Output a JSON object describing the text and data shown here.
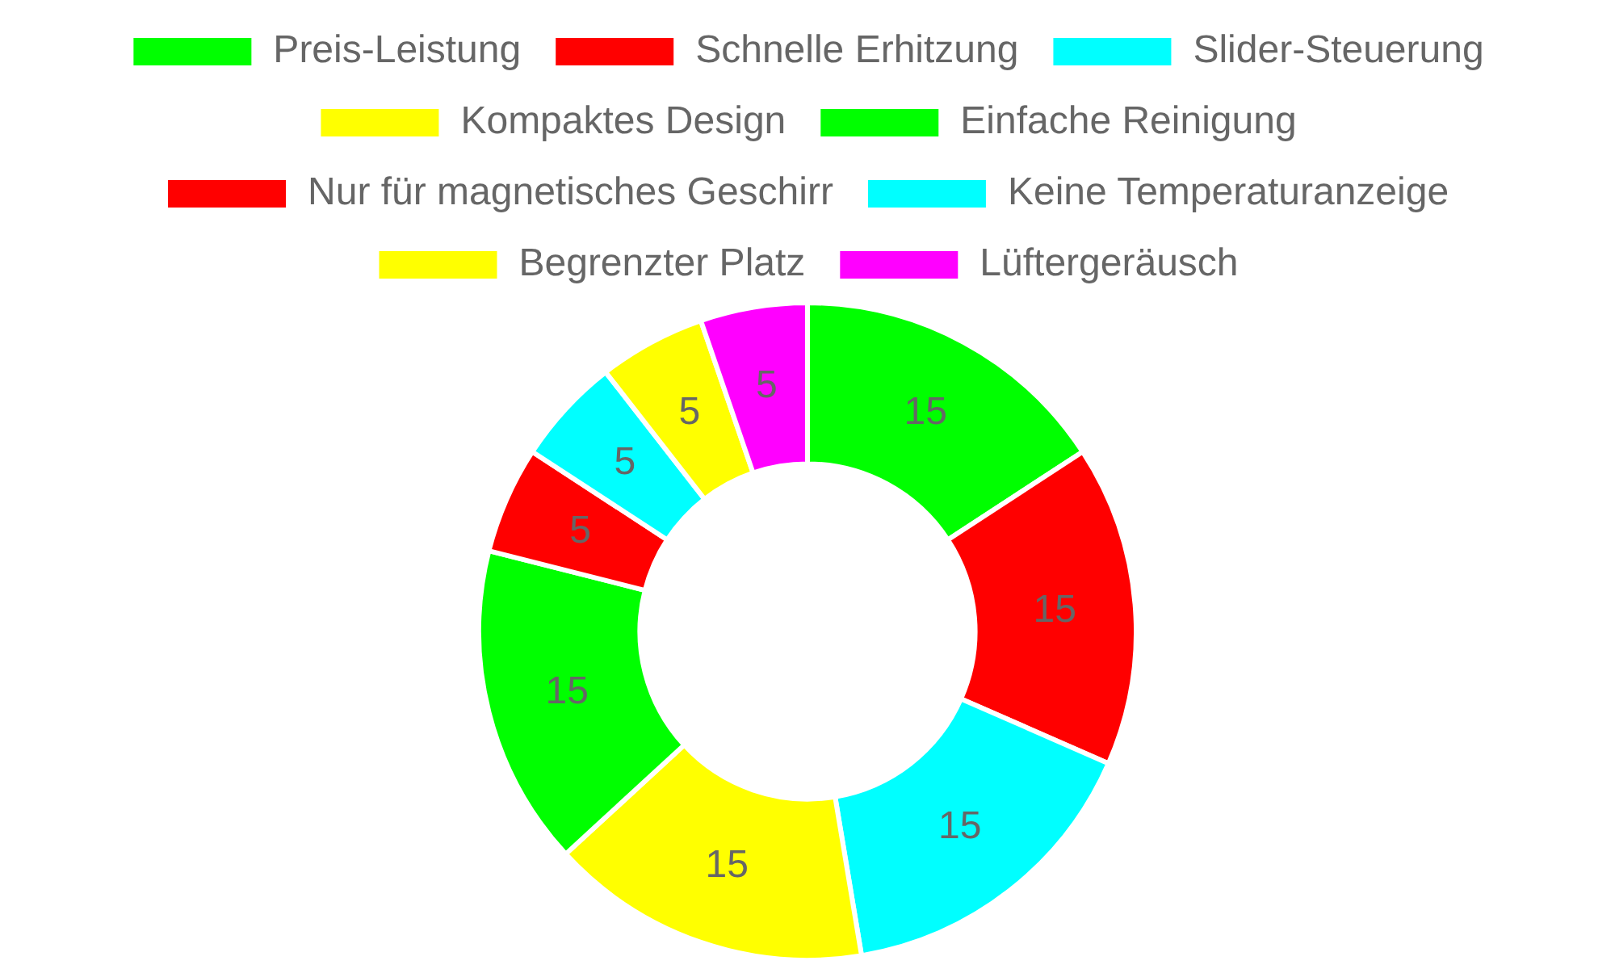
{
  "chart_data": {
    "type": "donut",
    "categories": [
      "Preis-Leistung",
      "Schnelle Erhitzung",
      "Slider-Steuerung",
      "Kompaktes Design",
      "Einfache Reinigung",
      "Nur für magnetisches Geschirr",
      "Keine Temperaturanzeige",
      "Begrenzter Platz",
      "Lüftergeräusch"
    ],
    "values": [
      15,
      15,
      15,
      15,
      15,
      5,
      5,
      5,
      5
    ],
    "colors": [
      "#00ff00",
      "#ff0000",
      "#00ffff",
      "#ffff00",
      "#00ff00",
      "#ff0000",
      "#00ffff",
      "#ffff00",
      "#ff00ff"
    ],
    "legend": "top",
    "data_labels": true
  }
}
